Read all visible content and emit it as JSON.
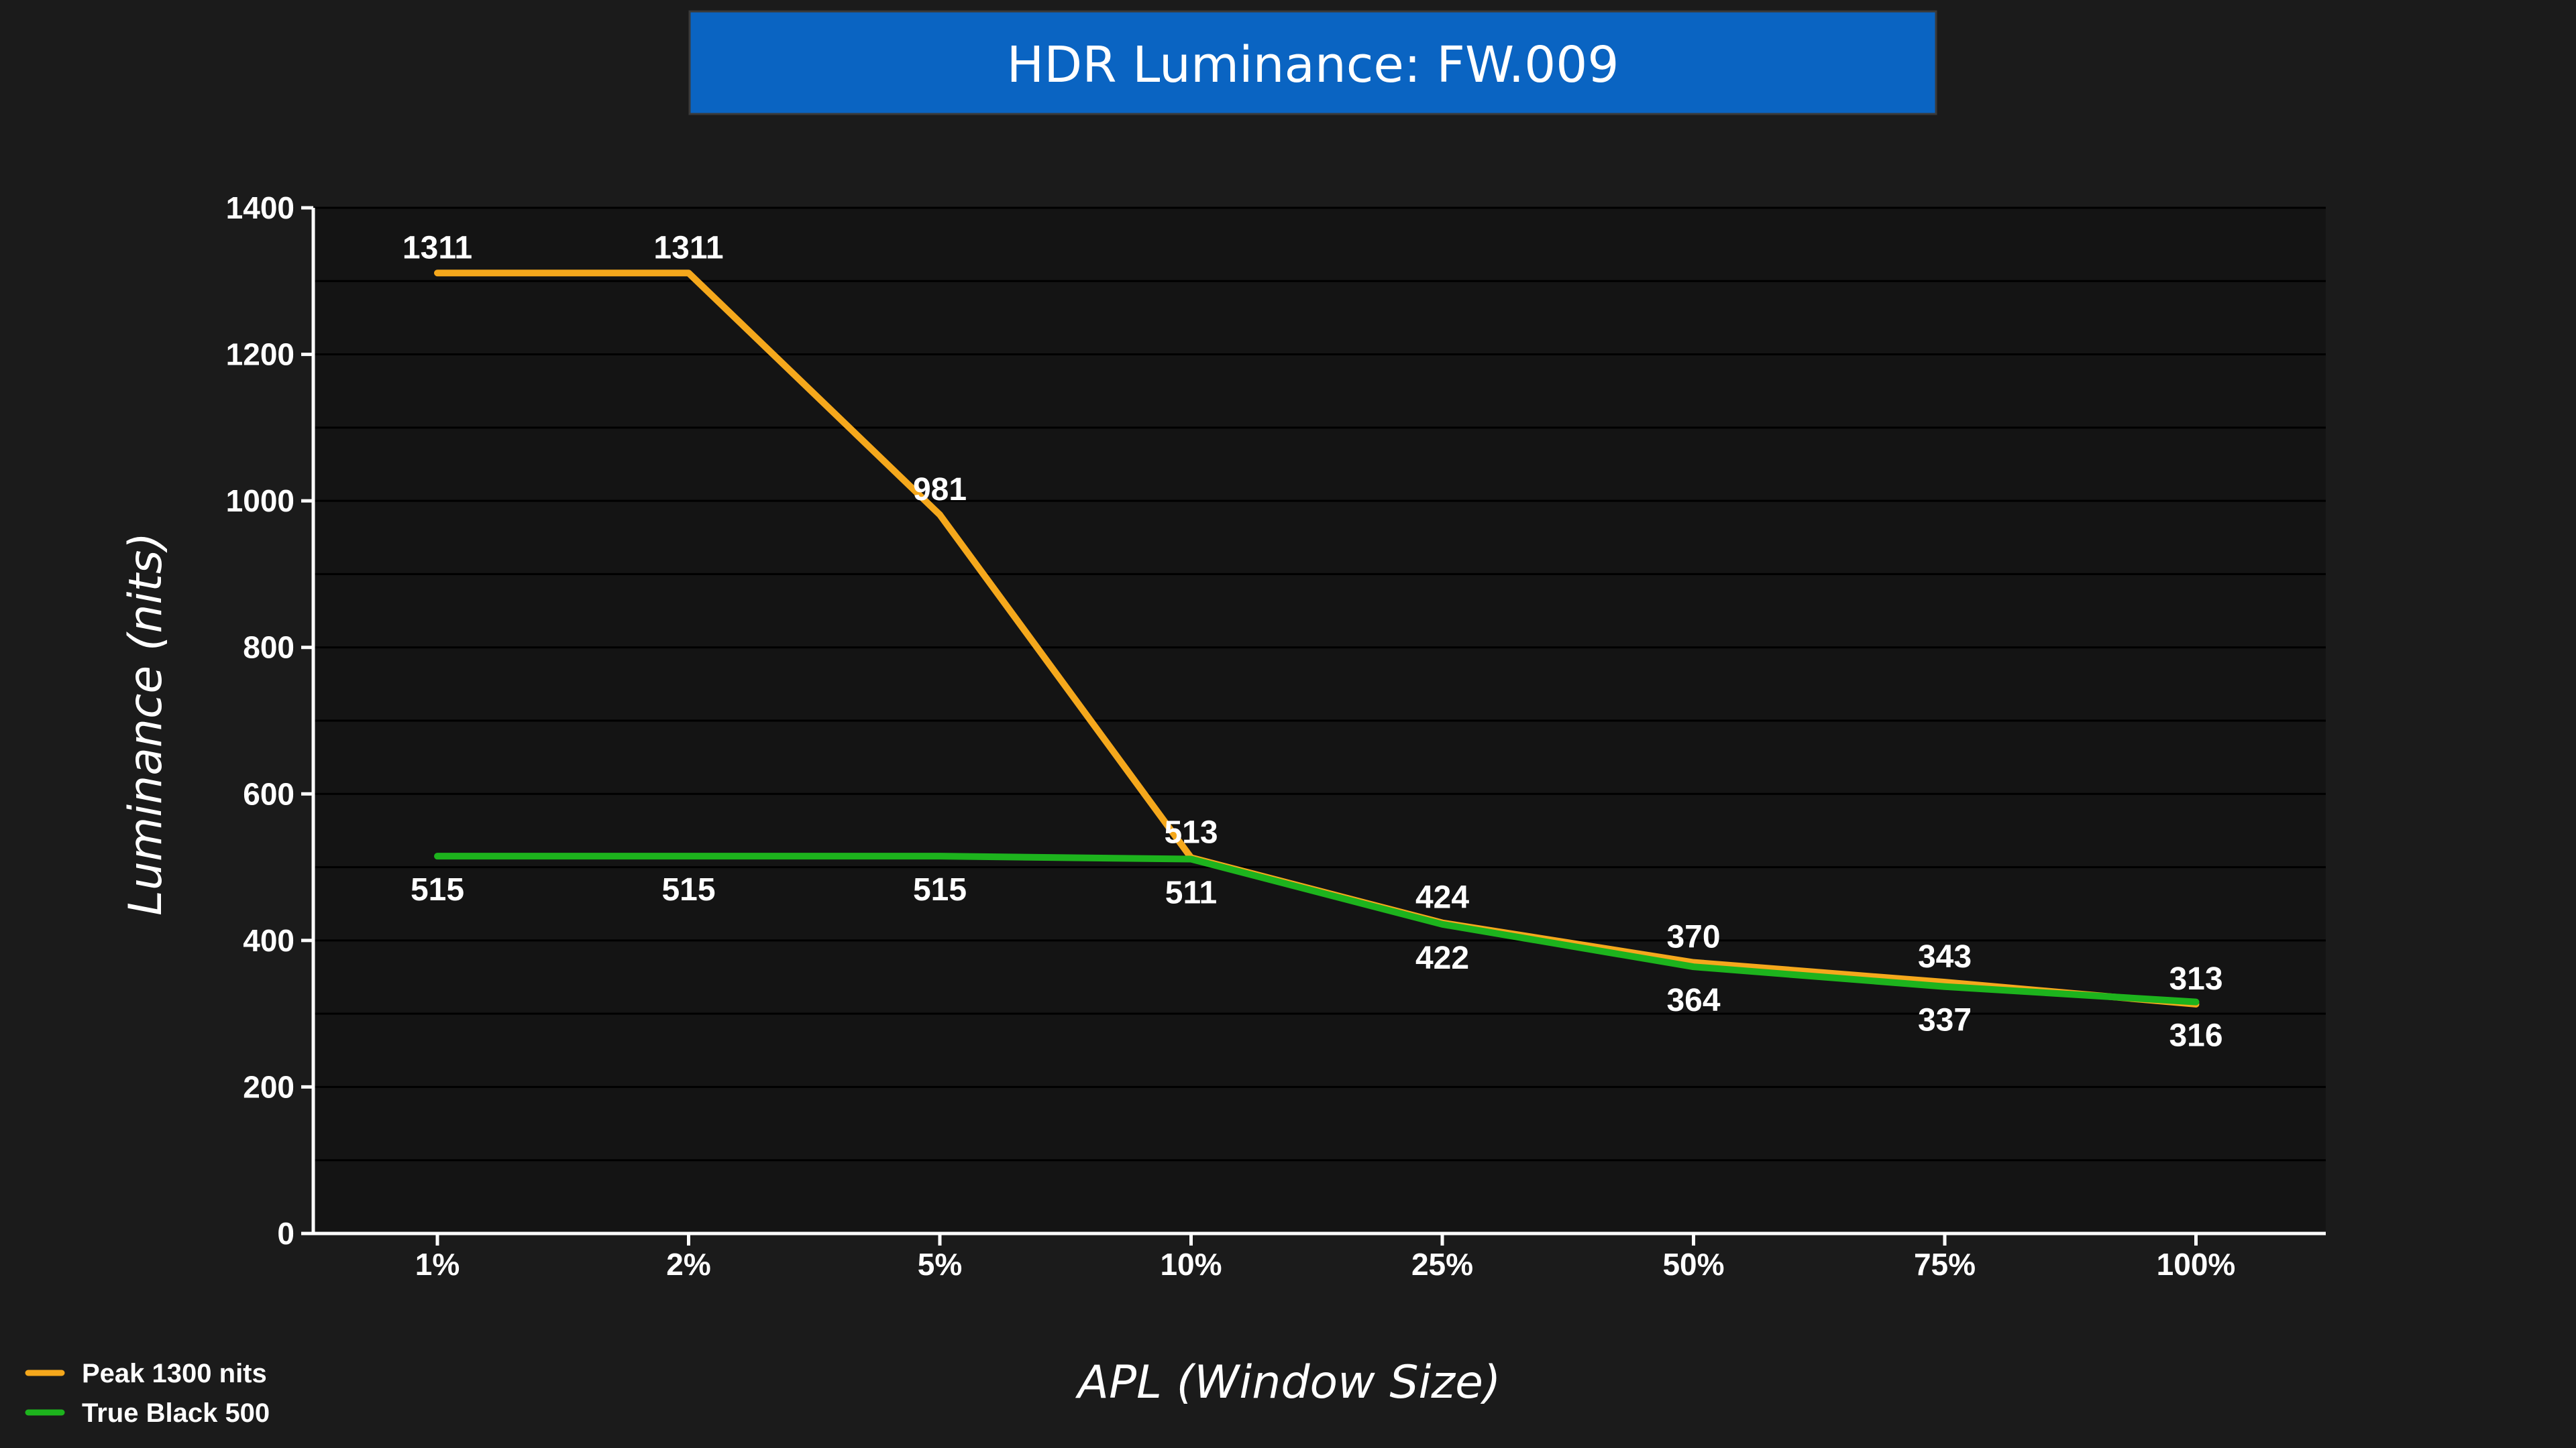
{
  "chart_data": {
    "type": "line",
    "title": "HDR Luminance: FW.009",
    "xlabel": "APL (Window Size)",
    "ylabel": "Luminance (nits)",
    "categories": [
      "1%",
      "2%",
      "5%",
      "10%",
      "25%",
      "50%",
      "75%",
      "100%"
    ],
    "ylim": [
      0,
      1400
    ],
    "yticks": [
      "0",
      "200",
      "400",
      "600",
      "800",
      "1000",
      "1200",
      "1400"
    ],
    "grid": true,
    "legend_position": "bottom-left",
    "series": [
      {
        "name": "Peak 1300 nits",
        "color": "#f5a81c",
        "values": [
          1311,
          1311,
          981,
          513,
          424,
          370,
          343,
          313
        ],
        "labels": [
          "1311",
          "1311",
          "981",
          "513",
          "424",
          "370",
          "343",
          "313"
        ]
      },
      {
        "name": "True Black 500",
        "color": "#1db31d",
        "values": [
          515,
          515,
          515,
          511,
          422,
          364,
          337,
          316
        ],
        "labels": [
          "515",
          "515",
          "515",
          "511",
          "422",
          "364",
          "337",
          "316"
        ]
      }
    ]
  },
  "colors": {
    "background": "#1b1b1b",
    "plot_background": "#141414",
    "title_box": "#0a64c2",
    "gridline": "#000000",
    "axis": "#ffffff"
  }
}
